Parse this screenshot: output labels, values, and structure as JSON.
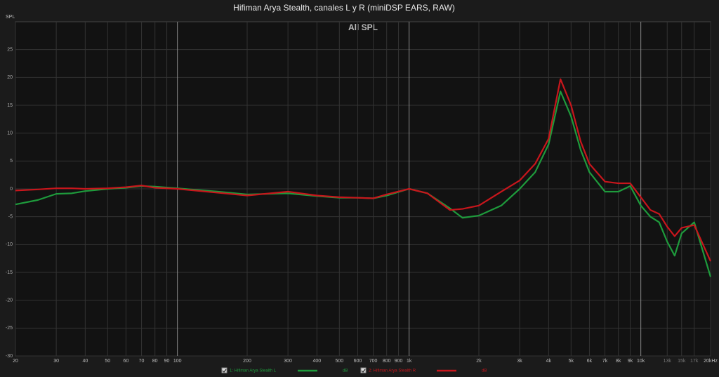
{
  "chart_data": {
    "type": "line",
    "title": "Hifiman Arya Stealth, canales L y R (miniDSP EARS, RAW)",
    "subtitle": "All SPL",
    "y_label": "SPL",
    "x_scale": "log",
    "grid": true,
    "xlim": [
      20,
      20000
    ],
    "ylim": [
      -30,
      30
    ],
    "xticks": [
      20,
      30,
      40,
      50,
      60,
      70,
      80,
      90,
      100,
      200,
      300,
      400,
      500,
      600,
      700,
      800,
      900,
      {
        "value": 1000,
        "label": "1k"
      },
      {
        "value": 2000,
        "label": "2k"
      },
      {
        "value": 3000,
        "label": "3k"
      },
      {
        "value": 4000,
        "label": "4k"
      },
      {
        "value": 5000,
        "label": "5k"
      },
      {
        "value": 6000,
        "label": "6k"
      },
      {
        "value": 7000,
        "label": "7k"
      },
      {
        "value": 8000,
        "label": "8k"
      },
      {
        "value": 9000,
        "label": "9k"
      },
      {
        "value": 10000,
        "label": "10k"
      },
      {
        "value": 13000,
        "label": "13k"
      },
      {
        "value": 15000,
        "label": "15k"
      },
      {
        "value": 17000,
        "label": "17k"
      },
      {
        "value": 20000,
        "label": "20kHz"
      }
    ],
    "yticks": [
      -30,
      -25,
      -20,
      -15,
      -10,
      -5,
      0,
      5,
      10,
      15,
      20,
      25
    ],
    "x": [
      20,
      25,
      30,
      35,
      40,
      50,
      60,
      70,
      80,
      100,
      150,
      200,
      300,
      400,
      500,
      600,
      700,
      800,
      1000,
      1200,
      1500,
      1700,
      2000,
      2500,
      3000,
      3500,
      4000,
      4500,
      5000,
      5500,
      6000,
      7000,
      8000,
      9000,
      10000,
      11000,
      12000,
      13000,
      14000,
      15000,
      17000,
      20000
    ],
    "series": [
      {
        "name": "1: Hifiman Arya Stealth L",
        "unit": "dB",
        "color": "#1e9b3c",
        "values": [
          -2.8,
          -2,
          -0.9,
          -0.8,
          -0.4,
          0,
          0.2,
          0.5,
          0.4,
          0.1,
          -0.5,
          -1,
          -0.8,
          -1.3,
          -1.6,
          -1.6,
          -1.7,
          -1.2,
          0,
          -0.8,
          -3.5,
          -5.2,
          -4.8,
          -3,
          0,
          3,
          8,
          17.5,
          13,
          7,
          3,
          -0.5,
          -0.5,
          0.5,
          -3,
          -5,
          -6,
          -9.5,
          -12,
          -8,
          -6,
          -15.8
        ]
      },
      {
        "name": "2: Hifiman Arya Stealth R",
        "unit": "dB",
        "color": "#c8161c",
        "values": [
          -0.3,
          -0.1,
          0.1,
          0.1,
          0,
          0.1,
          0.3,
          0.6,
          0.2,
          0,
          -0.7,
          -1.2,
          -0.5,
          -1.2,
          -1.5,
          -1.6,
          -1.7,
          -1,
          0,
          -0.8,
          -3.8,
          -3.6,
          -3,
          -0.5,
          1.5,
          4.5,
          9,
          19.7,
          15,
          8.5,
          4.5,
          1.3,
          1,
          1,
          -1.5,
          -3.8,
          -4.5,
          -6.8,
          -8.5,
          -7,
          -6.5,
          -13
        ]
      }
    ]
  }
}
